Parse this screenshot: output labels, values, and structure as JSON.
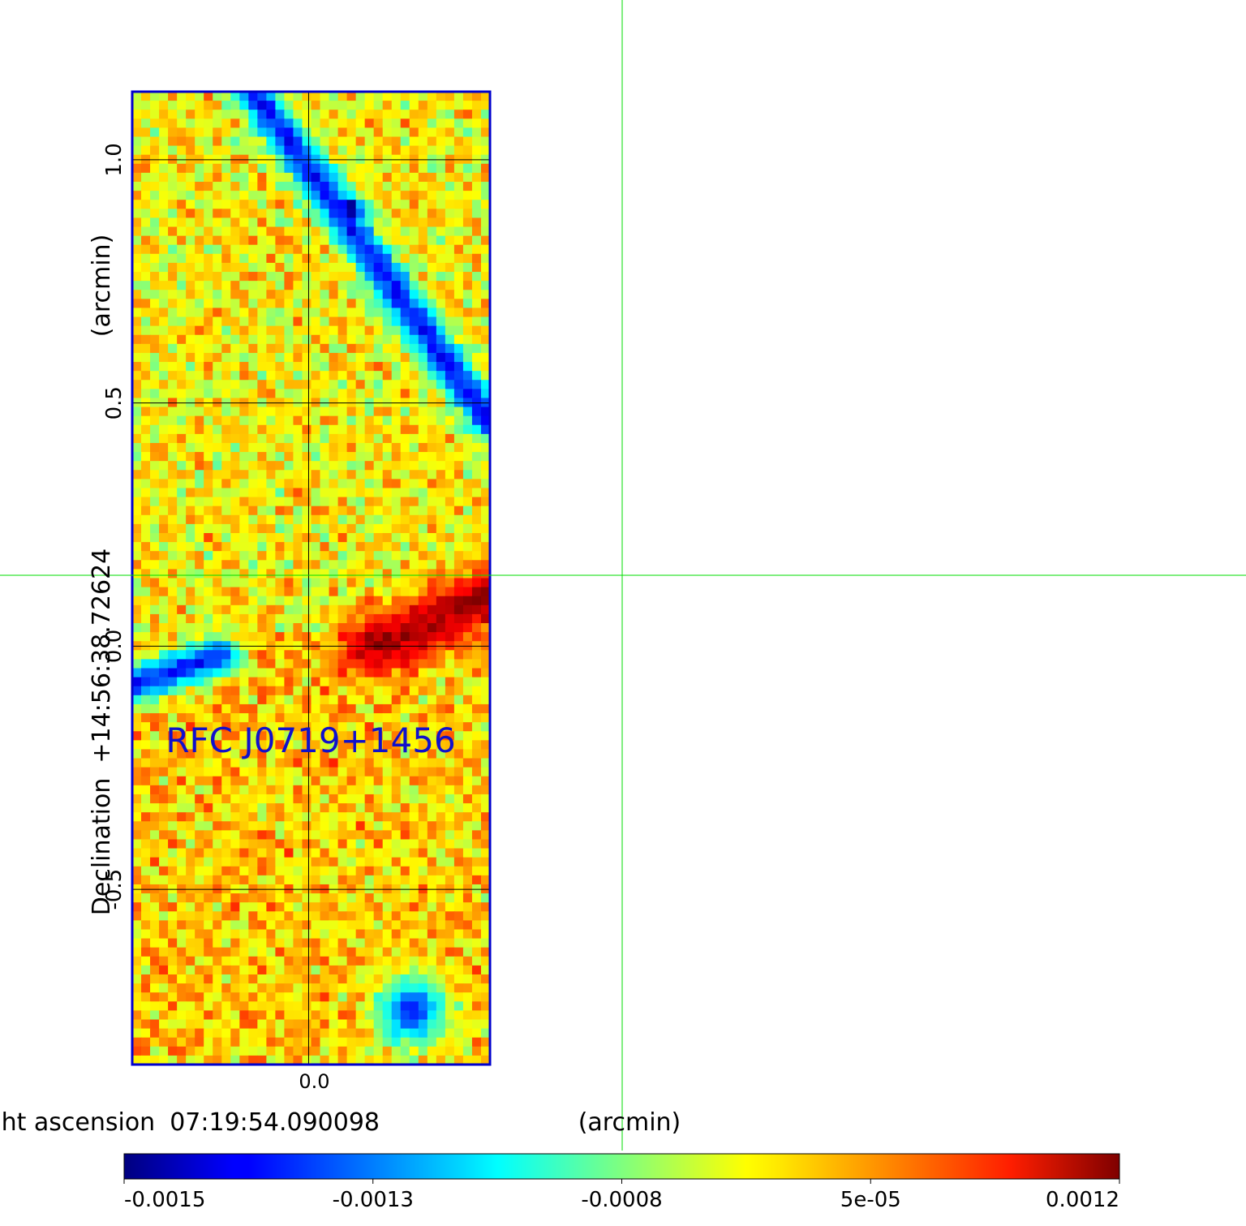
{
  "chart_data": {
    "type": "heatmap",
    "title": "",
    "annotation": "RFC J0719+1456",
    "xlabel_prefix": "Right ascension",
    "xlabel_center": "07:19:54.090098",
    "xlabel_unit": "(arcmin)",
    "ylabel_prefix": "Declination",
    "ylabel_center": "+14:56:38.72624",
    "ylabel_unit": "(arcmin)",
    "xticks": [
      0.0
    ],
    "xtick_labels": [
      "0.0"
    ],
    "yticks": [
      -0.5,
      0.0,
      0.5,
      1.0
    ],
    "ytick_labels": [
      "-0.5",
      "0.0",
      "0.5",
      "1.0"
    ],
    "xlim": [
      -0.36,
      0.37
    ],
    "ylim": [
      -0.86,
      1.14
    ],
    "grid": true,
    "colormap": "jet",
    "colorbar": {
      "orientation": "horizontal",
      "placement": "bottom",
      "vmin": -0.0015,
      "vmax": 0.0012,
      "tick_labels": [
        "-0.0015",
        "-0.0013",
        "-0.0008",
        "5e-05",
        "0.0012"
      ]
    },
    "features": [
      {
        "kind": "negative-stripe",
        "value": -0.0011,
        "from": [
          -0.12,
          1.15
        ],
        "to": [
          0.37,
          0.46
        ]
      },
      {
        "kind": "minimum",
        "value": -0.0015,
        "at": [
          0.09,
          0.9
        ]
      },
      {
        "kind": "negative-stripe",
        "value": -0.0011,
        "from": [
          -0.36,
          -0.08
        ],
        "to": [
          -0.18,
          -0.02
        ]
      },
      {
        "kind": "positive-ridge",
        "value": 0.0011,
        "from": [
          0.13,
          0.0
        ],
        "to": [
          0.37,
          0.1
        ]
      },
      {
        "kind": "negative-patch",
        "value": -0.001,
        "at": [
          0.21,
          -0.75
        ]
      }
    ],
    "pixel_grid": {
      "cols": 40,
      "rows": 108
    }
  },
  "colors": {
    "frame": "#0000cc",
    "grid": "#000000",
    "crosshair": "#00dd00",
    "annotation": "#1010cc"
  }
}
